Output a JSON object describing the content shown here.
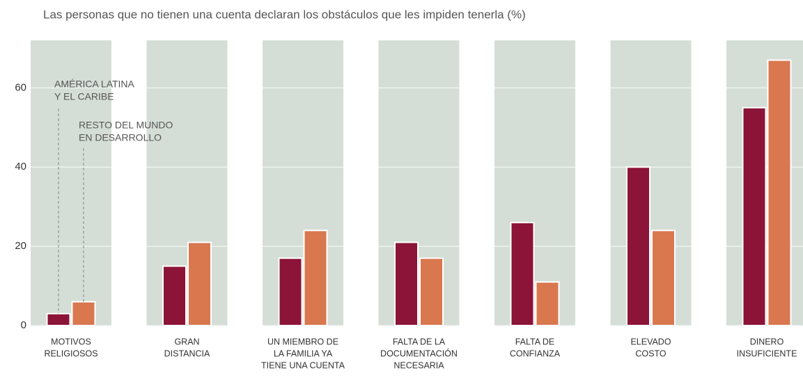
{
  "chart_data": {
    "type": "bar",
    "title": "Las personas que no tienen una cuenta declaran los obstáculos que les impiden tenerla (%)",
    "categories": [
      [
        "MOTIVOS",
        "RELIGIOSOS"
      ],
      [
        "GRAN",
        "DISTANCIA"
      ],
      [
        "UN MIEMBRO DE",
        "LA FAMILIA YA",
        "TIENE UNA CUENTA"
      ],
      [
        "FALTA DE LA",
        "DOCUMENTACIÓN",
        "NECESARIA"
      ],
      [
        "FALTA DE",
        "CONFIANZA"
      ],
      [
        "ELEVADO",
        "COSTO"
      ],
      [
        "DINERO",
        "INSUFICIENTE"
      ]
    ],
    "series": [
      {
        "name": [
          "AMÉRICA LATINA",
          "Y EL CARIBE"
        ],
        "color": "#8c1438",
        "values": [
          3,
          15,
          17,
          21,
          26,
          40,
          55
        ]
      },
      {
        "name": [
          "RESTO DEL MUNDO",
          "EN DESARROLLO"
        ],
        "color": "#d9774f",
        "values": [
          6,
          21,
          24,
          17,
          11,
          24,
          67
        ]
      }
    ],
    "ylim": [
      0,
      72
    ],
    "yticks": [
      0,
      20,
      40,
      60
    ],
    "grid": true
  }
}
